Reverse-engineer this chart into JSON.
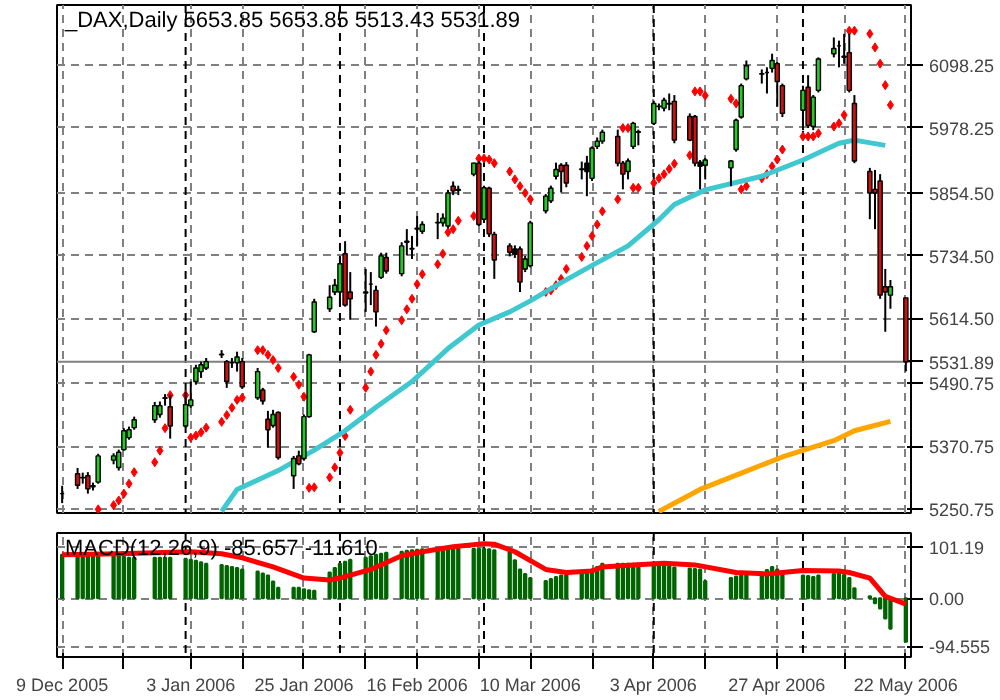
{
  "chart_data": [
    {
      "type": "candlestick",
      "title": "_DAX,Daily 5653.85 5653.85 5513.43 5531.89",
      "x": [
        "2005-12-09",
        "2005-12-12",
        "2005-12-13",
        "2005-12-14",
        "2005-12-15",
        "2005-12-16",
        "2005-12-19",
        "2005-12-20",
        "2005-12-21",
        "2005-12-22",
        "2005-12-23",
        "2005-12-27",
        "2005-12-28",
        "2005-12-29",
        "2005-12-30",
        "2006-01-02",
        "2006-01-03",
        "2006-01-04",
        "2006-01-05",
        "2006-01-06",
        "2006-01-09",
        "2006-01-10",
        "2006-01-11",
        "2006-01-12",
        "2006-01-13",
        "2006-01-16",
        "2006-01-17",
        "2006-01-18",
        "2006-01-19",
        "2006-01-20",
        "2006-01-23",
        "2006-01-24",
        "2006-01-25",
        "2006-01-26",
        "2006-01-27",
        "2006-01-30",
        "2006-01-31",
        "2006-02-01",
        "2006-02-02",
        "2006-02-03",
        "2006-02-06",
        "2006-02-07",
        "2006-02-08",
        "2006-02-09",
        "2006-02-10",
        "2006-02-13",
        "2006-02-14",
        "2006-02-15",
        "2006-02-16",
        "2006-02-17",
        "2006-02-20",
        "2006-02-21",
        "2006-02-22",
        "2006-02-23",
        "2006-02-24",
        "2006-02-27",
        "2006-02-28",
        "2006-03-01",
        "2006-03-02",
        "2006-03-03",
        "2006-03-06",
        "2006-03-07",
        "2006-03-08",
        "2006-03-09",
        "2006-03-10",
        "2006-03-13",
        "2006-03-14",
        "2006-03-15",
        "2006-03-16",
        "2006-03-17",
        "2006-03-20",
        "2006-03-21",
        "2006-03-22",
        "2006-03-23",
        "2006-03-24",
        "2006-03-27",
        "2006-03-28",
        "2006-03-29",
        "2006-03-30",
        "2006-03-31",
        "2006-04-03",
        "2006-04-04",
        "2006-04-05",
        "2006-04-06",
        "2006-04-07",
        "2006-04-10",
        "2006-04-11",
        "2006-04-12",
        "2006-04-13",
        "2006-04-18",
        "2006-04-19",
        "2006-04-20",
        "2006-04-21",
        "2006-04-24",
        "2006-04-25",
        "2006-04-26",
        "2006-04-27",
        "2006-04-28",
        "2006-05-02",
        "2006-05-03",
        "2006-05-04",
        "2006-05-05",
        "2006-05-08",
        "2006-05-09",
        "2006-05-10",
        "2006-05-11",
        "2006-05-12",
        "2006-05-15",
        "2006-05-16",
        "2006-05-17",
        "2006-05-18",
        "2006-05-19",
        "2006-05-22"
      ],
      "ohlc": [
        [
          5280,
          5295,
          5262,
          5280
        ],
        [
          5318,
          5329,
          5289,
          5296
        ],
        [
          5311,
          5320,
          5299,
          5310
        ],
        [
          5314,
          5321,
          5280,
          5289
        ],
        [
          5295,
          5301,
          5286,
          5293
        ],
        [
          5302,
          5356,
          5299,
          5352
        ],
        [
          5344,
          5357,
          5336,
          5352
        ],
        [
          5330,
          5364,
          5324,
          5359
        ],
        [
          5364,
          5405,
          5362,
          5400
        ],
        [
          5387,
          5408,
          5383,
          5402
        ],
        [
          5406,
          5427,
          5402,
          5421
        ],
        [
          5421,
          5455,
          5415,
          5448
        ],
        [
          5431,
          5456,
          5425,
          5448
        ],
        [
          5463,
          5470,
          5448,
          5462
        ],
        [
          5446,
          5469,
          5385,
          5409
        ],
        [
          5409,
          5475,
          5406,
          5450
        ],
        [
          5448,
          5494,
          5444,
          5459
        ],
        [
          5494,
          5526,
          5488,
          5520
        ],
        [
          5513,
          5532,
          5501,
          5526
        ],
        [
          5520,
          5539,
          5516,
          5532
        ],
        [
          5545,
          5554,
          5539,
          5546
        ],
        [
          5532,
          5535,
          5482,
          5494
        ],
        [
          5530,
          5539,
          5520,
          5530
        ],
        [
          5530,
          5551,
          5513,
          5541
        ],
        [
          5532,
          5539,
          5480,
          5484
        ],
        [
          5463,
          5520,
          5459,
          5513
        ],
        [
          5478,
          5482,
          5450,
          5457
        ],
        [
          5422,
          5438,
          5368,
          5402
        ],
        [
          5410,
          5440,
          5406,
          5431
        ],
        [
          5435,
          5437,
          5345,
          5349
        ],
        [
          5314,
          5352,
          5289,
          5347
        ],
        [
          5352,
          5362,
          5334,
          5337
        ],
        [
          5347,
          5431,
          5343,
          5427
        ],
        [
          5427,
          5547,
          5425,
          5545
        ],
        [
          5589,
          5652,
          5587,
          5646
        ],
        [
          5633,
          5678,
          5627,
          5655
        ],
        [
          5665,
          5690,
          5659,
          5678
        ],
        [
          5665,
          5734,
          5640,
          5719
        ],
        [
          5738,
          5762,
          5637,
          5640
        ],
        [
          5665,
          5703,
          5612,
          5652
        ],
        [
          5665,
          5709,
          5627,
          5663
        ],
        [
          5680,
          5703,
          5640,
          5680
        ],
        [
          5668,
          5677,
          5599,
          5627
        ],
        [
          5693,
          5740,
          5690,
          5734
        ],
        [
          5731,
          5740,
          5700,
          5705
        ],
        [
          5700,
          5760,
          5695,
          5753
        ],
        [
          5760,
          5785,
          5735,
          5762
        ],
        [
          5747,
          5772,
          5728,
          5748
        ],
        [
          5785,
          5810,
          5753,
          5787
        ],
        [
          5781,
          5800,
          5776,
          5794
        ],
        [
          5797,
          5816,
          5766,
          5798
        ],
        [
          5797,
          5815,
          5790,
          5806
        ],
        [
          5791,
          5860,
          5787,
          5854
        ],
        [
          5867,
          5876,
          5850,
          5858
        ],
        [
          5859,
          5868,
          5850,
          5861
        ],
        [
          5890,
          5912,
          5886,
          5911
        ],
        [
          5911,
          5915,
          5791,
          5794
        ],
        [
          5804,
          5868,
          5798,
          5864
        ],
        [
          5863,
          5866,
          5770,
          5776
        ],
        [
          5775,
          5780,
          5690,
          5726
        ],
        [
          5753,
          5758,
          5733,
          5741
        ],
        [
          5747,
          5754,
          5730,
          5737
        ],
        [
          5747,
          5752,
          5665,
          5684
        ],
        [
          5709,
          5734,
          5703,
          5728
        ],
        [
          5715,
          5801,
          5712,
          5797
        ],
        [
          5820,
          5852,
          5815,
          5848
        ],
        [
          5839,
          5868,
          5835,
          5863
        ],
        [
          5886,
          5912,
          5880,
          5899
        ],
        [
          5907,
          5911,
          5855,
          5895
        ],
        [
          5907,
          5913,
          5865,
          5873
        ],
        [
          5900,
          5914,
          5880,
          5899
        ],
        [
          5911,
          5925,
          5848,
          5895
        ],
        [
          5882,
          5943,
          5877,
          5940
        ],
        [
          5943,
          5960,
          5938,
          5953
        ],
        [
          5953,
          5975,
          5948,
          5970
        ],
        [
          5962,
          5975,
          5905,
          5911
        ],
        [
          5911,
          5915,
          5861,
          5890
        ],
        [
          5895,
          5920,
          5880,
          5915
        ],
        [
          5943,
          5990,
          5938,
          5987
        ],
        [
          5971,
          5975,
          5945,
          5970
        ],
        [
          5987,
          6030,
          5984,
          6025
        ],
        [
          6019,
          6025,
          6012,
          6020
        ],
        [
          6016,
          6036,
          6010,
          6031
        ],
        [
          6025,
          6044,
          6012,
          6024
        ],
        [
          6029,
          6041,
          5949,
          5955
        ],
        [
          6000,
          6006,
          5953,
          5955
        ],
        [
          6000,
          6003,
          5905,
          5911
        ],
        [
          5913,
          5917,
          5861,
          5905
        ],
        [
          5907,
          5921,
          5880,
          5917
        ],
        [
          5902,
          5917,
          5867,
          5915
        ],
        [
          5937,
          5996,
          5933,
          5993
        ],
        [
          5999,
          6063,
          5996,
          6059
        ],
        [
          6072,
          6107,
          6069,
          6097
        ],
        [
          6082,
          6090,
          6063,
          6081
        ],
        [
          6084,
          6094,
          6044,
          6084
        ],
        [
          6092,
          6120,
          6084,
          6107
        ],
        [
          6101,
          6104,
          6019,
          6067
        ],
        [
          6059,
          6063,
          5999,
          6006
        ],
        [
          6012,
          6059,
          5974,
          6050
        ],
        [
          6056,
          6079,
          5978,
          5983
        ],
        [
          5981,
          6041,
          5974,
          6037
        ],
        [
          6050,
          6113,
          6046,
          6110
        ],
        [
          6120,
          6151,
          6113,
          6130
        ],
        [
          6135,
          6145,
          6094,
          6135
        ],
        [
          6113,
          6158,
          6101,
          6115
        ],
        [
          6122,
          6158,
          6046,
          6050
        ],
        [
          6025,
          6041,
          5911,
          5915
        ],
        [
          5895,
          5902,
          5804,
          5854
        ],
        [
          5861,
          5898,
          5785,
          5854
        ],
        [
          5877,
          5890,
          5652,
          5659
        ],
        [
          5675,
          5709,
          5589,
          5665
        ],
        [
          5659,
          5688,
          5633,
          5675
        ],
        [
          5653.85,
          5653.85,
          5513.43,
          5531.89
        ]
      ],
      "colors": [
        "#000000",
        "#cc1111",
        "#000000",
        "#cc1111",
        "#000000",
        "#22cc22",
        "#22cc22",
        "#22cc22",
        "#22cc22",
        "#22cc22",
        "#22cc22",
        "#22cc22",
        "#22cc22",
        "#000000",
        "#cc1111",
        "#22cc22",
        "#22cc22",
        "#22cc22",
        "#22cc22",
        "#22cc22",
        "#000000",
        "#cc1111",
        "#000000",
        "#22cc22",
        "#cc1111",
        "#22cc22",
        "#cc1111",
        "#cc1111",
        "#22cc22",
        "#cc1111",
        "#22cc22",
        "#cc1111",
        "#22cc22",
        "#22cc22",
        "#22cc22",
        "#22cc22",
        "#22cc22",
        "#22cc22",
        "#cc1111",
        "#cc1111",
        "#000000",
        "#000000",
        "#cc1111",
        "#22cc22",
        "#cc1111",
        "#22cc22",
        "#000000",
        "#000000",
        "#000000",
        "#22cc22",
        "#000000",
        "#22cc22",
        "#22cc22",
        "#cc1111",
        "#000000",
        "#22cc22",
        "#cc1111",
        "#22cc22",
        "#cc1111",
        "#cc1111",
        "#cc1111",
        "#000000",
        "#cc1111",
        "#22cc22",
        "#22cc22",
        "#22cc22",
        "#22cc22",
        "#22cc22",
        "#cc1111",
        "#cc1111",
        "#000000",
        "#000000",
        "#22cc22",
        "#22cc22",
        "#22cc22",
        "#cc1111",
        "#cc1111",
        "#22cc22",
        "#22cc22",
        "#000000",
        "#22cc22",
        "#000000",
        "#22cc22",
        "#000000",
        "#cc1111",
        "#cc1111",
        "#cc1111",
        "#000000",
        "#22cc22",
        "#22cc22",
        "#22cc22",
        "#22cc22",
        "#22cc22",
        "#000000",
        "#000000",
        "#22cc22",
        "#cc1111",
        "#cc1111",
        "#22cc22",
        "#cc1111",
        "#22cc22",
        "#22cc22",
        "#22cc22",
        "#000000",
        "#000000",
        "#cc1111",
        "#cc1111",
        "#cc1111",
        "#cc1111",
        "#cc1111",
        "#cc1111",
        "#22cc22",
        "#cc1111"
      ],
      "series": [
        {
          "type": "scatter",
          "marker": "diamond",
          "color": "#ff0000",
          "values": [
            null,
            null,
            null,
            null,
            null,
            5250,
            5258,
            5267,
            5280,
            5299,
            5321,
            5340,
            5362,
            5405,
            5468,
            5468,
            5387,
            5391,
            5397,
            5406,
            5417,
            5430,
            5444,
            5459,
            5463,
            5554,
            5554,
            5545,
            5535,
            5520,
            5503,
            5488,
            5465,
            5291,
            5292,
            5311,
            5330,
            5358,
            5390,
            5440,
            5482,
            5513,
            5545,
            5566,
            5592,
            5611,
            5632,
            5652,
            5680,
            5699,
            5718,
            5738,
            5779,
            5785,
            5801,
            5810,
            5920,
            5920,
            5918,
            5911,
            5895,
            5880,
            5867,
            5854,
            5842,
            5665,
            5668,
            5678,
            5690,
            5709,
            5732,
            5753,
            5772,
            5794,
            5819,
            5842,
            5978,
            5978,
            5864,
            5864,
            5873,
            5882,
            5890,
            5900,
            5910,
            5926,
            6048,
            6048,
            6040,
            6034,
            6025,
            5861,
            5867,
            5882,
            5890,
            5905,
            5918,
            5937,
            5962,
            5962,
            5962,
            5968,
            5981,
            5987,
            6003,
            6164,
            6164,
            6158,
            6132,
            6101,
            6060,
            6022,
            null
          ]
        },
        {
          "type": "line",
          "color": "#40c8d0",
          "x": [
            "2006-01-09",
            "2006-01-12",
            "2006-01-20",
            "2006-01-27",
            "2006-02-02",
            "2006-02-08",
            "2006-02-15",
            "2006-02-22",
            "2006-02-28",
            "2006-03-06",
            "2006-03-10",
            "2006-03-16",
            "2006-03-23",
            "2006-03-29",
            "2006-04-04",
            "2006-04-07",
            "2006-04-13",
            "2006-04-24",
            "2006-05-02",
            "2006-05-09",
            "2006-05-12",
            "2006-05-18"
          ],
          "values": [
            5246,
            5288,
            5324,
            5363,
            5400,
            5445,
            5494,
            5557,
            5602,
            5627,
            5648,
            5683,
            5721,
            5753,
            5803,
            5832,
            5860,
            5886,
            5917,
            5949,
            5955,
            5945
          ]
        },
        {
          "type": "line",
          "color": "#ffa500",
          "x": [
            "2006-04-04",
            "2006-04-12",
            "2006-04-21",
            "2006-04-28",
            "2006-05-08",
            "2006-05-12",
            "2006-05-19"
          ],
          "values": [
            5246,
            5288,
            5323,
            5350,
            5381,
            5400,
            5418
          ]
        }
      ],
      "xlim": [
        "2005-12-08",
        "2006-05-23"
      ],
      "xticks": [
        {
          "value": "2005-12-09",
          "label": null
        },
        {
          "value": "2005-12-21",
          "label": null
        },
        {
          "value": "2006-01-03",
          "label": null
        },
        {
          "value": "2006-01-13",
          "label": null
        },
        {
          "value": "2006-01-25",
          "label": null
        },
        {
          "value": "2006-02-06",
          "label": null
        },
        {
          "value": "2006-02-16",
          "label": null
        },
        {
          "value": "2006-02-28",
          "label": null
        },
        {
          "value": "2006-03-10",
          "label": null
        },
        {
          "value": "2006-03-22",
          "label": null
        },
        {
          "value": "2006-04-03",
          "label": null
        },
        {
          "value": "2006-04-13",
          "label": null
        },
        {
          "value": "2006-04-27",
          "label": null
        },
        {
          "value": "2006-05-10",
          "label": null
        },
        {
          "value": "2006-05-22",
          "label": null
        }
      ],
      "ylim": [
        5243,
        6213
      ],
      "yticks": [
        {
          "value": 5250.75,
          "label": "5250.75"
        },
        {
          "value": 5370.75,
          "label": "5370.75"
        },
        {
          "value": 5490.75,
          "label": "5490.75"
        },
        {
          "value": 5614.5,
          "label": "5614.50"
        },
        {
          "value": 5734.5,
          "label": "5734.50"
        },
        {
          "value": 5854.5,
          "label": "5854.50"
        },
        {
          "value": 5978.25,
          "label": "5978.25"
        },
        {
          "value": 6098.25,
          "label": "6098.25"
        }
      ],
      "grid": true,
      "tick_labels": "y",
      "ref_lines": [
        {
          "axis": "x",
          "value": "2006-01-02",
          "color": "#000000",
          "line_style": "dashed"
        },
        {
          "axis": "x",
          "value": "2006-02-01",
          "color": "#000000",
          "line_style": "dashed"
        },
        {
          "axis": "x",
          "value": "2006-03-01",
          "color": "#000000",
          "line_style": "dashed"
        },
        {
          "axis": "x",
          "value": "2006-04-03",
          "color": "#000000",
          "line_style": "dashed"
        },
        {
          "axis": "x",
          "value": "2006-05-02",
          "color": "#000000",
          "line_style": "dashed"
        },
        {
          "axis": "y",
          "value": 5531.89,
          "label": "5531.89",
          "color": "#808080",
          "line_style": "solid"
        }
      ]
    },
    {
      "type": "bar",
      "title": "MACD(12,26,9) -85.657 -11.610",
      "x": [
        "2005-12-09",
        "2005-12-12",
        "2005-12-13",
        "2005-12-14",
        "2005-12-15",
        "2005-12-16",
        "2005-12-19",
        "2005-12-20",
        "2005-12-21",
        "2005-12-22",
        "2005-12-23",
        "2005-12-27",
        "2005-12-28",
        "2005-12-29",
        "2005-12-30",
        "2006-01-02",
        "2006-01-03",
        "2006-01-04",
        "2006-01-05",
        "2006-01-06",
        "2006-01-09",
        "2006-01-10",
        "2006-01-11",
        "2006-01-12",
        "2006-01-13",
        "2006-01-16",
        "2006-01-17",
        "2006-01-18",
        "2006-01-19",
        "2006-01-20",
        "2006-01-23",
        "2006-01-24",
        "2006-01-25",
        "2006-01-26",
        "2006-01-27",
        "2006-01-30",
        "2006-01-31",
        "2006-02-01",
        "2006-02-02",
        "2006-02-03",
        "2006-02-06",
        "2006-02-07",
        "2006-02-08",
        "2006-02-09",
        "2006-02-10",
        "2006-02-13",
        "2006-02-14",
        "2006-02-15",
        "2006-02-16",
        "2006-02-17",
        "2006-02-20",
        "2006-02-21",
        "2006-02-22",
        "2006-02-23",
        "2006-02-24",
        "2006-02-27",
        "2006-02-28",
        "2006-03-01",
        "2006-03-02",
        "2006-03-03",
        "2006-03-06",
        "2006-03-07",
        "2006-03-08",
        "2006-03-09",
        "2006-03-10",
        "2006-03-13",
        "2006-03-14",
        "2006-03-15",
        "2006-03-16",
        "2006-03-17",
        "2006-03-20",
        "2006-03-21",
        "2006-03-22",
        "2006-03-23",
        "2006-03-24",
        "2006-03-27",
        "2006-03-28",
        "2006-03-29",
        "2006-03-30",
        "2006-03-31",
        "2006-04-03",
        "2006-04-04",
        "2006-04-05",
        "2006-04-06",
        "2006-04-07",
        "2006-04-10",
        "2006-04-11",
        "2006-04-12",
        "2006-04-13",
        "2006-04-18",
        "2006-04-19",
        "2006-04-20",
        "2006-04-21",
        "2006-04-24",
        "2006-04-25",
        "2006-04-26",
        "2006-04-27",
        "2006-04-28",
        "2006-05-02",
        "2006-05-03",
        "2006-05-04",
        "2006-05-05",
        "2006-05-08",
        "2006-05-09",
        "2006-05-10",
        "2006-05-11",
        "2006-05-12",
        "2006-05-15",
        "2006-05-16",
        "2006-05-17",
        "2006-05-18",
        "2006-05-19",
        "2006-05-22"
      ],
      "series": [
        {
          "type": "bar",
          "color": "#006400",
          "values": [
            86,
            86,
            86,
            86,
            86,
            85,
            84,
            83,
            82,
            80,
            80,
            80,
            80,
            80,
            80,
            78,
            76,
            74,
            71,
            68,
            66,
            64,
            62,
            60,
            57,
            53,
            49,
            45,
            33,
            21,
            21,
            21,
            18,
            16,
            15,
            51,
            60,
            68,
            72,
            76,
            80,
            83,
            86,
            88,
            90,
            92,
            94,
            95,
            96,
            97,
            97,
            98,
            98,
            98,
            98,
            98,
            98,
            98,
            97,
            95,
            92,
            75,
            57,
            48,
            40,
            34,
            38,
            42,
            45,
            48,
            51,
            54,
            57,
            62,
            68,
            68,
            68,
            68,
            68,
            68,
            67,
            66,
            65,
            63,
            61,
            59,
            58,
            57,
            34,
            40,
            43,
            45,
            48,
            51,
            56,
            62,
            57,
            52,
            45,
            44,
            42,
            45,
            48,
            51,
            46,
            40,
            20,
            4,
            -10,
            -20,
            -40,
            -60,
            -85.657
          ]
        },
        {
          "type": "line",
          "color": "#ff0000",
          "x": [
            "2005-12-09",
            "2005-12-20",
            "2006-01-03",
            "2006-01-09",
            "2006-01-13",
            "2006-01-19",
            "2006-01-25",
            "2006-01-30",
            "2006-02-01",
            "2006-02-07",
            "2006-02-13",
            "2006-02-17",
            "2006-02-23",
            "2006-03-01",
            "2006-03-03",
            "2006-03-07",
            "2006-03-13",
            "2006-03-17",
            "2006-03-22",
            "2006-03-24",
            "2006-03-30",
            "2006-04-05",
            "2006-04-11",
            "2006-04-19",
            "2006-04-25",
            "2006-05-02",
            "2006-05-09",
            "2006-05-11",
            "2006-05-15",
            "2006-05-16",
            "2006-05-18",
            "2006-05-22"
          ],
          "values": [
            86,
            88,
            92,
            88,
            80,
            62,
            40,
            36,
            40,
            57,
            84,
            92,
            102,
            108,
            107,
            92,
            57,
            51,
            54,
            62,
            66,
            69,
            66,
            51,
            48,
            55,
            54,
            51,
            40,
            28,
            4,
            -11.61
          ]
        }
      ],
      "xlim": [
        "2005-12-08",
        "2006-05-23"
      ],
      "xticks": [
        {
          "value": "2005-12-09",
          "label": "9 Dec 2005"
        },
        {
          "value": "2005-12-21",
          "label": null
        },
        {
          "value": "2006-01-03",
          "label": "3 Jan 2006"
        },
        {
          "value": "2006-01-13",
          "label": null
        },
        {
          "value": "2006-01-25",
          "label": "25 Jan 2006"
        },
        {
          "value": "2006-02-06",
          "label": null
        },
        {
          "value": "2006-02-16",
          "label": "16 Feb 2006"
        },
        {
          "value": "2006-02-28",
          "label": null
        },
        {
          "value": "2006-03-10",
          "label": "10 Mar 2006"
        },
        {
          "value": "2006-03-22",
          "label": null
        },
        {
          "value": "2006-04-03",
          "label": "3 Apr 2006"
        },
        {
          "value": "2006-04-13",
          "label": null
        },
        {
          "value": "2006-04-27",
          "label": "27 Apr 2006"
        },
        {
          "value": "2006-05-10",
          "label": null
        },
        {
          "value": "2006-05-22",
          "label": "22 May 2006"
        }
      ],
      "ylim": [
        -116,
        129
      ],
      "yticks": [
        {
          "value": -94.555,
          "label": "-94.555"
        },
        {
          "value": 0,
          "label": "0.00"
        },
        {
          "value": 101.19,
          "label": "101.19"
        }
      ],
      "grid": true,
      "ref_lines": [
        {
          "axis": "x",
          "value": "2006-01-02",
          "color": "#000000",
          "line_style": "dashed"
        },
        {
          "axis": "x",
          "value": "2006-02-01",
          "color": "#000000",
          "line_style": "dashed"
        },
        {
          "axis": "x",
          "value": "2006-03-01",
          "color": "#000000",
          "line_style": "dashed"
        },
        {
          "axis": "x",
          "value": "2006-04-03",
          "color": "#000000",
          "line_style": "dashed"
        },
        {
          "axis": "x",
          "value": "2006-05-02",
          "color": "#000000",
          "line_style": "dashed"
        }
      ]
    }
  ]
}
